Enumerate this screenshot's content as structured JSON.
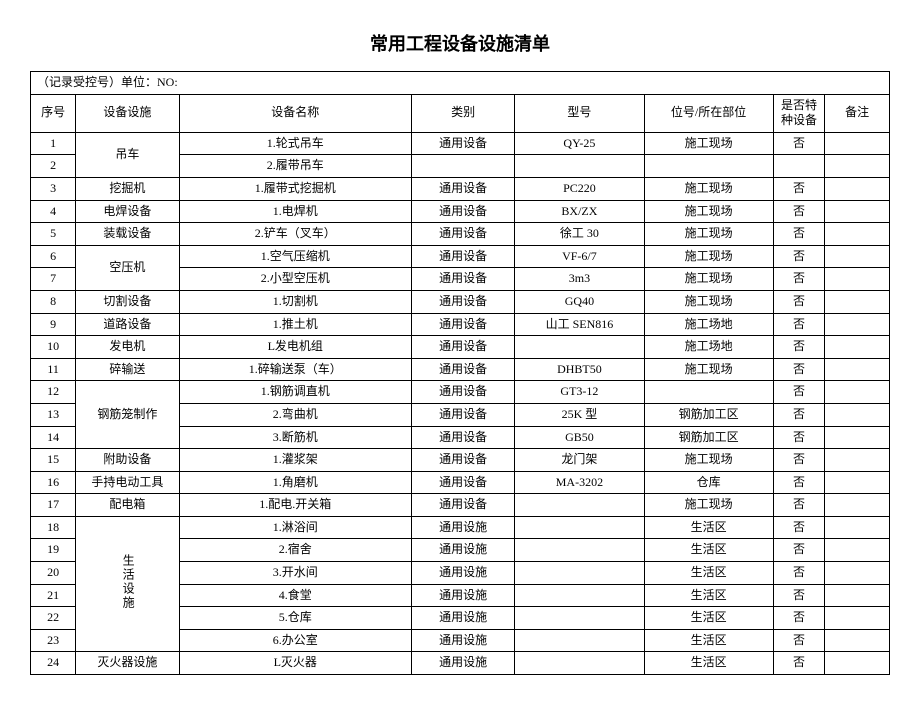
{
  "title": "常用工程设备设施清单",
  "record_label": "（记录受控号）单位：NO:",
  "columns": {
    "seq": "序号",
    "facility": "设备设施",
    "name": "设备名称",
    "category": "类别",
    "model": "型号",
    "location": "位号/所在部位",
    "special": "是否特种设备",
    "remark": "备注"
  },
  "merges": {
    "crane": "吊车",
    "compressor": "空压机",
    "rebar": "钢筋笼制作",
    "living": "生活设施"
  },
  "rows": [
    {
      "seq": "1",
      "facility": "",
      "name": "1.轮式吊车",
      "category": "通用设备",
      "model": "QY-25",
      "location": "施工现场",
      "special": "否",
      "remark": ""
    },
    {
      "seq": "2",
      "facility": "",
      "name": "2.履带吊车",
      "category": "",
      "model": "",
      "location": "",
      "special": "",
      "remark": ""
    },
    {
      "seq": "3",
      "facility": "挖掘机",
      "name": "1.履带式挖掘机",
      "category": "通用设备",
      "model": "PC220",
      "location": "施工现场",
      "special": "否",
      "remark": ""
    },
    {
      "seq": "4",
      "facility": "电焊设备",
      "name": "1.电焊机",
      "category": "通用设备",
      "model": "BX/ZX",
      "location": "施工现场",
      "special": "否",
      "remark": ""
    },
    {
      "seq": "5",
      "facility": "装载设备",
      "name": "2.铲车（叉车）",
      "category": "通用设备",
      "model": "徐工 30",
      "location": "施工现场",
      "special": "否",
      "remark": ""
    },
    {
      "seq": "6",
      "facility": "",
      "name": "1.空气压缩机",
      "category": "通用设备",
      "model": "VF-6/7",
      "location": "施工现场",
      "special": "否",
      "remark": ""
    },
    {
      "seq": "7",
      "facility": "",
      "name": "2.小型空压机",
      "category": "通用设备",
      "model": "3m3",
      "location": "施工现场",
      "special": "否",
      "remark": ""
    },
    {
      "seq": "8",
      "facility": "切割设备",
      "name": "1.切割机",
      "category": "通用设备",
      "model": "GQ40",
      "location": "施工现场",
      "special": "否",
      "remark": ""
    },
    {
      "seq": "9",
      "facility": "道路设备",
      "name": "1.推土机",
      "category": "通用设备",
      "model": "山工 SEN816",
      "location": "施工场地",
      "special": "否",
      "remark": ""
    },
    {
      "seq": "10",
      "facility": "发电机",
      "name": "L发电机组",
      "category": "通用设备",
      "model": "",
      "location": "施工场地",
      "special": "否",
      "remark": ""
    },
    {
      "seq": "11",
      "facility": "碎输送",
      "name": "1.碎输送泵（车）",
      "category": "通用设备",
      "model": "DHBT50",
      "location": "施工现场",
      "special": "否",
      "remark": ""
    },
    {
      "seq": "12",
      "facility": "",
      "name": "1.钢筋调直机",
      "category": "通用设备",
      "model": "GT3-12",
      "location": "",
      "special": "否",
      "remark": ""
    },
    {
      "seq": "13",
      "facility": "",
      "name": "2.弯曲机",
      "category": "通用设备",
      "model": "25K 型",
      "location": "钢筋加工区",
      "special": "否",
      "remark": ""
    },
    {
      "seq": "14",
      "facility": "",
      "name": "3.断筋机",
      "category": "通用设备",
      "model": "GB50",
      "location": "钢筋加工区",
      "special": "否",
      "remark": ""
    },
    {
      "seq": "15",
      "facility": "附助设备",
      "name": "1.灌浆架",
      "category": "通用设备",
      "model": "龙门架",
      "location": "施工现场",
      "special": "否",
      "remark": ""
    },
    {
      "seq": "16",
      "facility": "手持电动工具",
      "name": "1.角磨机",
      "category": "通用设备",
      "model": "MA-3202",
      "location": "仓库",
      "special": "否",
      "remark": ""
    },
    {
      "seq": "17",
      "facility": "配电箱",
      "name": "1.配电.开关箱",
      "category": "通用设备",
      "model": "",
      "location": "施工现场",
      "special": "否",
      "remark": ""
    },
    {
      "seq": "18",
      "facility": "",
      "name": "1.淋浴间",
      "category": "通用设施",
      "model": "",
      "location": "生活区",
      "special": "否",
      "remark": ""
    },
    {
      "seq": "19",
      "facility": "",
      "name": "2.宿舍",
      "category": "通用设施",
      "model": "",
      "location": "生活区",
      "special": "否",
      "remark": ""
    },
    {
      "seq": "20",
      "facility": "",
      "name": "3.开水间",
      "category": "通用设施",
      "model": "",
      "location": "生活区",
      "special": "否",
      "remark": ""
    },
    {
      "seq": "21",
      "facility": "",
      "name": "4.食堂",
      "category": "通用设施",
      "model": "",
      "location": "生活区",
      "special": "否",
      "remark": ""
    },
    {
      "seq": "22",
      "facility": "",
      "name": "5.仓库",
      "category": "通用设施",
      "model": "",
      "location": "生活区",
      "special": "否",
      "remark": ""
    },
    {
      "seq": "23",
      "facility": "",
      "name": "6.办公室",
      "category": "通用设施",
      "model": "",
      "location": "生活区",
      "special": "否",
      "remark": ""
    },
    {
      "seq": "24",
      "facility": "灭火器设施",
      "name": "L灭火器",
      "category": "通用设施",
      "model": "",
      "location": "生活区",
      "special": "否",
      "remark": ""
    }
  ],
  "styling": {
    "background_color": "#ffffff",
    "border_color": "#000000",
    "text_color": "#000000",
    "title_fontsize": 18,
    "body_fontsize": 12,
    "font_family": "SimSun"
  }
}
